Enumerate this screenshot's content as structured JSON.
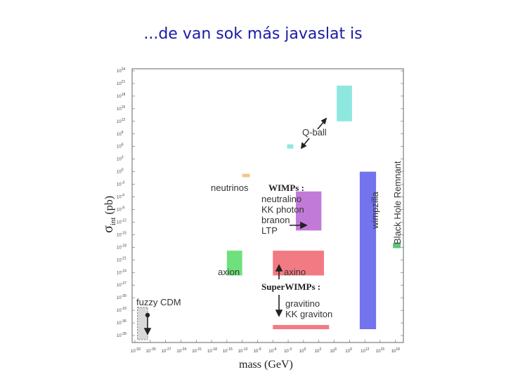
{
  "slide": {
    "title": "...de van sok más javaslat is"
  },
  "chart_data": {
    "type": "region",
    "xlabel": "mass (GeV)",
    "ylabel_main": "σ",
    "ylabel_sub": "int",
    "ylabel_unit": " (pb)",
    "x_log10_range": [
      -33,
      19
    ],
    "y_log10_range": [
      -40,
      24
    ],
    "x_ticks": [
      {
        "base": "10",
        "exp": "-33",
        "v": -33
      },
      {
        "base": "10",
        "exp": "-30",
        "v": -30
      },
      {
        "base": "10",
        "exp": "-27",
        "v": -27
      },
      {
        "base": "10",
        "exp": "-24",
        "v": -24
      },
      {
        "base": "10",
        "exp": "-21",
        "v": -21
      },
      {
        "base": "10",
        "exp": "-18",
        "v": -18
      },
      {
        "base": "10",
        "exp": "-15",
        "v": -15
      },
      {
        "base": "10",
        "exp": "-12",
        "v": -12
      },
      {
        "base": "10",
        "exp": "-9",
        "v": -9
      },
      {
        "base": "10",
        "exp": "-6",
        "v": -6
      },
      {
        "base": "10",
        "exp": "-3",
        "v": -3
      },
      {
        "base": "10",
        "exp": "0",
        "v": 0
      },
      {
        "base": "10",
        "exp": "3",
        "v": 3
      },
      {
        "base": "10",
        "exp": "6",
        "v": 6
      },
      {
        "base": "10",
        "exp": "9",
        "v": 9
      },
      {
        "base": "10",
        "exp": "12",
        "v": 12
      },
      {
        "base": "10",
        "exp": "15",
        "v": 15
      },
      {
        "base": "10",
        "exp": "18",
        "v": 18
      }
    ],
    "y_ticks": [
      {
        "base": "10",
        "exp": "24",
        "v": 24
      },
      {
        "base": "10",
        "exp": "21",
        "v": 21
      },
      {
        "base": "10",
        "exp": "18",
        "v": 18
      },
      {
        "base": "10",
        "exp": "15",
        "v": 15
      },
      {
        "base": "10",
        "exp": "12",
        "v": 12
      },
      {
        "base": "10",
        "exp": "9",
        "v": 9
      },
      {
        "base": "10",
        "exp": "6",
        "v": 6
      },
      {
        "base": "10",
        "exp": "3",
        "v": 3
      },
      {
        "base": "10",
        "exp": "0",
        "v": 0
      },
      {
        "base": "10",
        "exp": "-3",
        "v": -3
      },
      {
        "base": "10",
        "exp": "-6",
        "v": -6
      },
      {
        "base": "10",
        "exp": "-9",
        "v": -9
      },
      {
        "base": "10",
        "exp": "-12",
        "v": -12
      },
      {
        "base": "10",
        "exp": "-15",
        "v": -15
      },
      {
        "base": "10",
        "exp": "-18",
        "v": -18
      },
      {
        "base": "10",
        "exp": "-21",
        "v": -21
      },
      {
        "base": "10",
        "exp": "-24",
        "v": -24
      },
      {
        "base": "10",
        "exp": "-27",
        "v": -27
      },
      {
        "base": "10",
        "exp": "-30",
        "v": -30
      },
      {
        "base": "10",
        "exp": "-33",
        "v": -33
      },
      {
        "base": "10",
        "exp": "-36",
        "v": -36
      },
      {
        "base": "10",
        "exp": "-39",
        "v": -39
      }
    ],
    "regions": [
      {
        "name": "q-ball-region",
        "x": [
          6.5,
          9.5
        ],
        "y": [
          12,
          20.5
        ],
        "color": "#8ee8e0"
      },
      {
        "name": "q-ball-small-region",
        "x": [
          -3.2,
          -2
        ],
        "y": [
          5.5,
          6.5
        ],
        "color": "#8ee8e0"
      },
      {
        "name": "neutrinos-region",
        "x": [
          -12,
          -10.5
        ],
        "y": [
          -1.3,
          -0.5
        ],
        "color": "#f5c488"
      },
      {
        "name": "wimp-region",
        "x": [
          -1.5,
          3.5
        ],
        "y": [
          -14,
          -4.7
        ],
        "color": "#c27ad8"
      },
      {
        "name": "axion-region",
        "x": [
          -15,
          -12
        ],
        "y": [
          -24.7,
          -18.8
        ],
        "color": "#6fe07c"
      },
      {
        "name": "axino-region",
        "x": [
          -6,
          4
        ],
        "y": [
          -24.7,
          -18.8
        ],
        "color": "#f27a82"
      },
      {
        "name": "superwimp-region",
        "x": [
          -6,
          5
        ],
        "y": [
          -37.5,
          -36.5
        ],
        "color": "#f27a82"
      },
      {
        "name": "wimpzilla-region",
        "x": [
          11,
          14.2
        ],
        "y": [
          -37.5,
          0
        ],
        "color": "#7373ee"
      },
      {
        "name": "black-hole-remnant-region",
        "x": [
          17.5,
          19
        ],
        "y": [
          -18.2,
          -17
        ],
        "color": "#5cc77a"
      },
      {
        "name": "fuzzy-cdm-region",
        "x": [
          -32.5,
          -30.5
        ],
        "y": [
          -40,
          -32.3
        ],
        "color": "#d8d8d8"
      }
    ],
    "labels": {
      "q_ball": "Q-ball",
      "neutrinos": "neutrinos",
      "wimps_heading": "WIMPs :",
      "wimps_list": [
        "neutralino",
        "KK photon",
        "branon",
        "LTP"
      ],
      "axion": "axion",
      "axino": "axino",
      "superwimps_heading": "SuperWIMPs :",
      "superwimps_list": [
        "gravitino",
        "KK graviton"
      ],
      "fuzzy_cdm": "fuzzy CDM",
      "wimpzilla": "wimpzilla",
      "black_hole_remnant": "Black Hole Remnant"
    }
  }
}
